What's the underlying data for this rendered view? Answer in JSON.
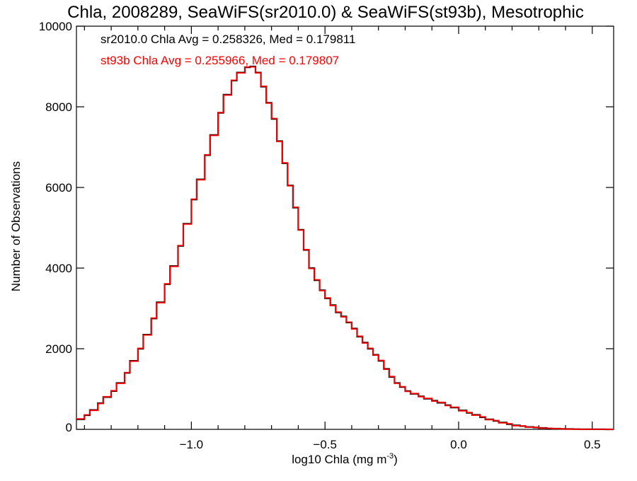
{
  "chart_data": {
    "type": "line",
    "title": "Chla, 2008289, SeaWiFS(sr2010.0) & SeaWiFS(st93b), Mesotrophic",
    "xlabel": "log10 Chla (mg m",
    "xlabel_sup": "-3",
    "xlabel_tail": ")",
    "ylabel": "Number of Observations",
    "xlim": [
      -1.43,
      0.58
    ],
    "ylim": [
      0,
      10000
    ],
    "x_ticks": [
      -1.0,
      -0.5,
      0.0,
      0.5
    ],
    "x_tick_labels": [
      "−1.0",
      "−0.5",
      "0.0",
      "0.5"
    ],
    "y_ticks": [
      0,
      2000,
      4000,
      6000,
      8000,
      10000
    ],
    "y_tick_labels": [
      "0",
      "2000",
      "4000",
      "6000",
      "8000",
      "10000"
    ],
    "grid": false,
    "annotations": [
      {
        "text": "sr2010.0 Chla Avg = 0.258326, Med = 0.179811",
        "color": "#000000"
      },
      {
        "text": "st93b Chla Avg = 0.255966, Med = 0.179807",
        "color": "#ff0000"
      }
    ],
    "series": [
      {
        "name": "sr2010.0",
        "color": "#000000",
        "x": [
          -1.43,
          -1.4,
          -1.38,
          -1.35,
          -1.33,
          -1.3,
          -1.28,
          -1.25,
          -1.23,
          -1.2,
          -1.18,
          -1.15,
          -1.13,
          -1.1,
          -1.08,
          -1.05,
          -1.03,
          -1.0,
          -0.98,
          -0.95,
          -0.93,
          -0.9,
          -0.88,
          -0.85,
          -0.83,
          -0.8,
          -0.78,
          -0.76,
          -0.74,
          -0.72,
          -0.7,
          -0.68,
          -0.66,
          -0.64,
          -0.62,
          -0.6,
          -0.58,
          -0.56,
          -0.54,
          -0.52,
          -0.5,
          -0.48,
          -0.46,
          -0.44,
          -0.42,
          -0.4,
          -0.38,
          -0.36,
          -0.34,
          -0.32,
          -0.3,
          -0.28,
          -0.26,
          -0.24,
          -0.22,
          -0.2,
          -0.18,
          -0.15,
          -0.13,
          -0.1,
          -0.08,
          -0.05,
          -0.03,
          0.0,
          0.03,
          0.05,
          0.08,
          0.1,
          0.13,
          0.15,
          0.18,
          0.2,
          0.23,
          0.25,
          0.28,
          0.3,
          0.33,
          0.35,
          0.38,
          0.4,
          0.43,
          0.45,
          0.48,
          0.5,
          0.53,
          0.55,
          0.58
        ],
        "y": [
          250,
          350,
          480,
          650,
          800,
          950,
          1150,
          1400,
          1700,
          2000,
          2350,
          2750,
          3150,
          3600,
          4050,
          4550,
          5100,
          5700,
          6200,
          6800,
          7300,
          7850,
          8300,
          8650,
          8850,
          8980,
          9000,
          8850,
          8500,
          8100,
          7700,
          7150,
          6600,
          6050,
          5500,
          4950,
          4450,
          4000,
          3700,
          3450,
          3250,
          3080,
          2900,
          2800,
          2650,
          2500,
          2300,
          2150,
          2000,
          1850,
          1700,
          1500,
          1300,
          1150,
          1050,
          950,
          880,
          820,
          760,
          710,
          660,
          600,
          540,
          470,
          410,
          360,
          300,
          250,
          210,
          170,
          130,
          100,
          80,
          60,
          45,
          35,
          25,
          18,
          12,
          8,
          5,
          3,
          2,
          1,
          1,
          0,
          0
        ]
      },
      {
        "name": "st93b",
        "color": "#ff0000",
        "x": [
          -1.43,
          -1.4,
          -1.38,
          -1.35,
          -1.33,
          -1.3,
          -1.28,
          -1.25,
          -1.23,
          -1.2,
          -1.18,
          -1.15,
          -1.13,
          -1.1,
          -1.08,
          -1.05,
          -1.03,
          -1.0,
          -0.98,
          -0.95,
          -0.93,
          -0.9,
          -0.88,
          -0.85,
          -0.83,
          -0.8,
          -0.78,
          -0.76,
          -0.74,
          -0.72,
          -0.7,
          -0.68,
          -0.66,
          -0.64,
          -0.62,
          -0.6,
          -0.58,
          -0.56,
          -0.54,
          -0.52,
          -0.5,
          -0.48,
          -0.46,
          -0.44,
          -0.42,
          -0.4,
          -0.38,
          -0.36,
          -0.34,
          -0.32,
          -0.3,
          -0.28,
          -0.26,
          -0.24,
          -0.22,
          -0.2,
          -0.18,
          -0.15,
          -0.13,
          -0.1,
          -0.08,
          -0.05,
          -0.03,
          0.0,
          0.03,
          0.05,
          0.08,
          0.1,
          0.13,
          0.15,
          0.18,
          0.2,
          0.23,
          0.25,
          0.28,
          0.3,
          0.33,
          0.35,
          0.38,
          0.4,
          0.43,
          0.45,
          0.48,
          0.5,
          0.53,
          0.55,
          0.58
        ],
        "y": [
          260,
          360,
          470,
          640,
          810,
          960,
          1140,
          1410,
          1690,
          2010,
          2340,
          2760,
          3140,
          3610,
          4040,
          4560,
          5090,
          5710,
          6190,
          6810,
          7290,
          7860,
          8290,
          8660,
          8840,
          8990,
          8990,
          8840,
          8510,
          8090,
          7710,
          7140,
          6610,
          6040,
          5510,
          4940,
          4460,
          3990,
          3710,
          3440,
          3260,
          3070,
          2910,
          2790,
          2660,
          2490,
          2310,
          2140,
          2010,
          1840,
          1710,
          1490,
          1310,
          1140,
          1060,
          940,
          890,
          810,
          770,
          700,
          670,
          590,
          550,
          460,
          420,
          350,
          310,
          240,
          220,
          160,
          140,
          90,
          85,
          55,
          50,
          30,
          28,
          15,
          14,
          6,
          6,
          2,
          3,
          1,
          1,
          0,
          0
        ]
      }
    ]
  }
}
